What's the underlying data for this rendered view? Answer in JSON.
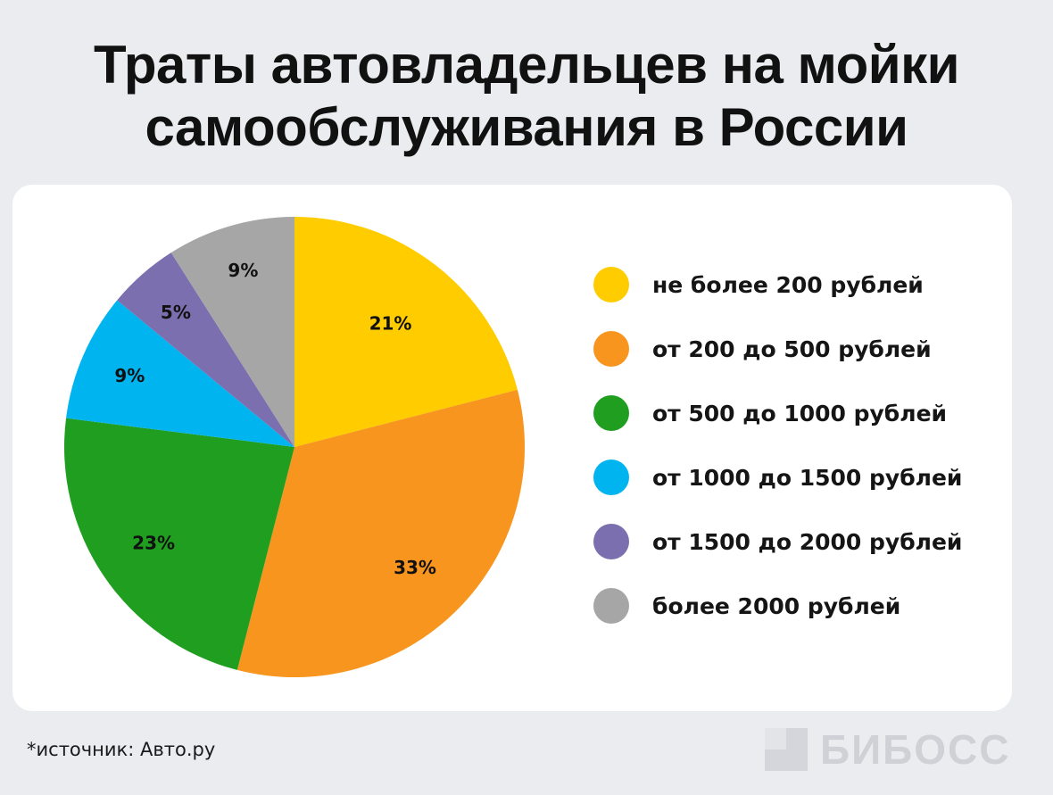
{
  "header": {
    "title_line1": "Траты автовладельцев на мойки",
    "title_line2": "самообслуживания в России"
  },
  "chart_data": {
    "type": "pie",
    "title": "Траты автовладельцев на мойки самообслуживания в России",
    "categories": [
      "не более 200 рублей",
      "от 200 до 500 рублей",
      "от 500 до 1000 рублей",
      "от 1000 до 1500 рублей",
      "от 1500 до 2000 рублей",
      "более 2000 рублей"
    ],
    "values": [
      21,
      33,
      23,
      9,
      5,
      9
    ],
    "labels": [
      "21%",
      "33%",
      "23%",
      "9%",
      "5%",
      "9%"
    ],
    "colors": [
      "#ffcc00",
      "#f7951e",
      "#1f9e20",
      "#00b4ef",
      "#7b6faf",
      "#a6a6a6"
    ],
    "legend_position": "right",
    "start_angle": "12 o'clock",
    "direction": "clockwise"
  },
  "footer": {
    "source": "*источник: Авто.ру",
    "brand": "БИБОСС"
  }
}
